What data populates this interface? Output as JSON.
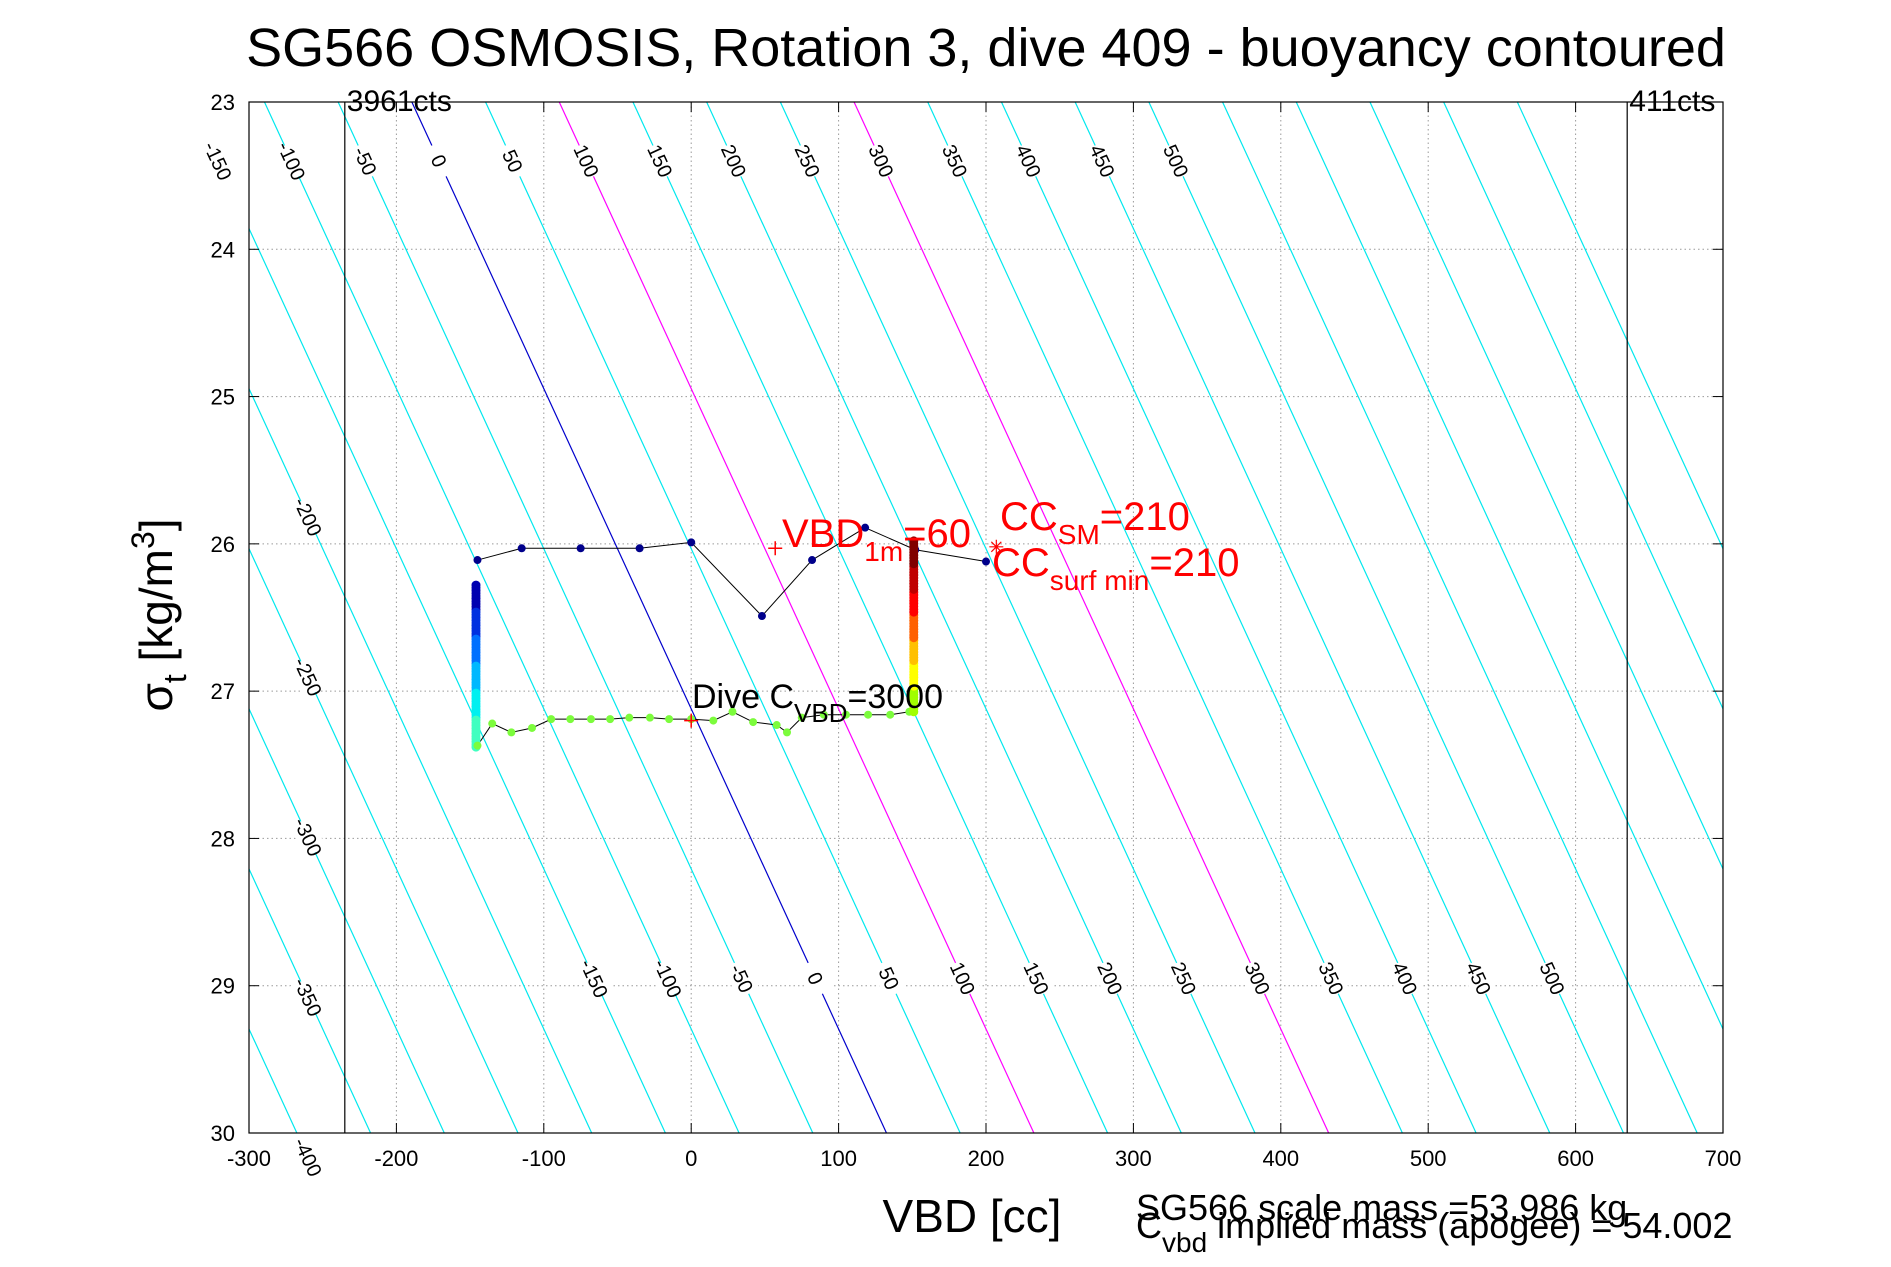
{
  "chart_data": {
    "type": "line",
    "title": "SG566 OSMOSIS, Rotation 3, dive 409 - buoyancy contoured",
    "xlabel": "VBD [cc]",
    "ylabel": {
      "main": "σ",
      "sub": "t",
      "rest": " [kg/m",
      "sup": "3",
      "close": "]"
    },
    "xlim": [
      -300,
      700
    ],
    "ylim": [
      23,
      30
    ],
    "y_reversed": true,
    "grid": true,
    "xticks": [
      -300,
      -200,
      -100,
      0,
      100,
      200,
      300,
      400,
      500,
      600,
      700
    ],
    "yticks": [
      23,
      24,
      25,
      26,
      27,
      28,
      29,
      30
    ],
    "contours": {
      "slope_cc_per_sigma": 46,
      "reference_sigma": 27.12,
      "values": [
        -450,
        -400,
        -350,
        -300,
        -250,
        -200,
        -150,
        -100,
        -50,
        0,
        50,
        100,
        150,
        200,
        250,
        300,
        350,
        400,
        450,
        500,
        550,
        600,
        650,
        700,
        750
      ],
      "colors": {
        "default": "#00e8ee",
        "zero": "#0000cc",
        "magenta": "#ff00ff"
      },
      "magenta_values": [
        100,
        300
      ],
      "labels_top": {
        "sigma": 23.4,
        "values": [
          -150,
          -100,
          -50,
          0,
          50,
          100,
          150,
          200,
          250,
          300,
          350,
          400,
          450,
          500
        ]
      },
      "labels_left": {
        "vbd": -260,
        "values": [
          -400,
          -350,
          -300,
          -250,
          -200
        ]
      },
      "labels_bottom": {
        "sigma": 28.95,
        "values": [
          -150,
          -100,
          -50,
          0,
          50,
          100,
          150,
          200,
          250,
          300,
          350,
          400,
          450,
          500
        ]
      }
    },
    "pump_limits": [
      {
        "vbd": -235,
        "label": "3961cts"
      },
      {
        "vbd": 635,
        "label": "411cts"
      }
    ],
    "climb_series": {
      "color": "#00008b",
      "points": [
        [
          -145,
          26.11
        ],
        [
          -115,
          26.03
        ],
        [
          -75,
          26.03
        ],
        [
          -35,
          26.03
        ],
        [
          0,
          25.99
        ],
        [
          48,
          26.49
        ],
        [
          82,
          26.11
        ],
        [
          118,
          25.89
        ],
        [
          152,
          26.04
        ],
        [
          200,
          26.12
        ]
      ]
    },
    "dive_descent": {
      "vbd": -146,
      "sigma_start": 26.28,
      "sigma_end": 27.38,
      "colors": [
        "#0000b0",
        "#0030e0",
        "#0070ff",
        "#00b8ff",
        "#00f0f0",
        "#40ffc0"
      ]
    },
    "dive_bottom": {
      "color": "#7cfc3c",
      "points": [
        [
          -145,
          27.37
        ],
        [
          -135,
          27.22
        ],
        [
          -122,
          27.28
        ],
        [
          -108,
          27.25
        ],
        [
          -95,
          27.19
        ],
        [
          -82,
          27.19
        ],
        [
          -68,
          27.19
        ],
        [
          -55,
          27.19
        ],
        [
          -42,
          27.18
        ],
        [
          -28,
          27.18
        ],
        [
          -15,
          27.19
        ],
        [
          0,
          27.19
        ],
        [
          15,
          27.2
        ],
        [
          28,
          27.14
        ],
        [
          42,
          27.21
        ],
        [
          58,
          27.23
        ],
        [
          65,
          27.28
        ],
        [
          75,
          27.18
        ],
        [
          90,
          27.16
        ],
        [
          105,
          27.16
        ],
        [
          120,
          27.16
        ],
        [
          135,
          27.16
        ],
        [
          148,
          27.14
        ]
      ]
    },
    "dive_ascent": {
      "vbd": 151,
      "sigma_start": 27.14,
      "sigma_end": 25.98,
      "colors": [
        "#a0ff00",
        "#ffff00",
        "#ffc000",
        "#ff6000",
        "#ff0000",
        "#c00000",
        "#800000"
      ]
    },
    "markers": {
      "vbd_1m": {
        "vbd": 57,
        "sigma": 26.03
      },
      "cc_sm": {
        "vbd": 207,
        "sigma": 26.02
      },
      "dive_c": {
        "vbd": 0,
        "sigma": 27.2
      }
    },
    "annotations": {
      "vbd_1m": {
        "main": "VBD",
        "sub": "1m",
        "value": "=60"
      },
      "cc_sm": {
        "main": "CC",
        "sub": "SM",
        "value": "=210"
      },
      "cc_surf": {
        "main": "CC",
        "sub": "surf min",
        "value": "=210"
      },
      "dive_c": {
        "main": "Dive C",
        "sub": "VBD",
        "value": "=3000"
      },
      "scale_mass": "SG566 scale mass =53.986 kg",
      "implied_mass": {
        "main": "C",
        "sub": "vbd",
        "value": " implied mass (apogee) = 54.002"
      }
    }
  }
}
